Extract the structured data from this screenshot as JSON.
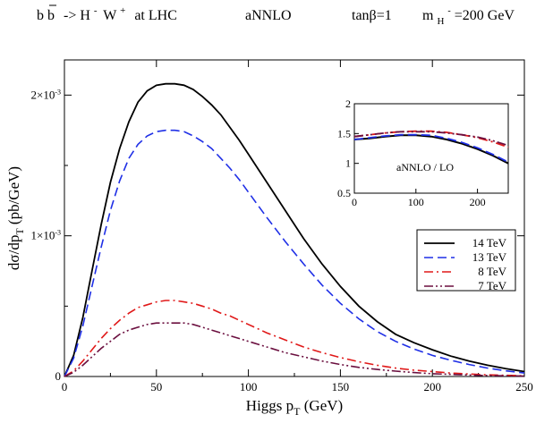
{
  "title": {
    "process_parts": [
      "b b",
      "-> H",
      "W",
      "at LHC"
    ],
    "minus_sup": "-",
    "plus_sup": "+",
    "order": "aNNLO",
    "tanb": "tanβ=1",
    "mass_label": "m",
    "mass_sub": "H",
    "mass_sup": "-",
    "mass_value": "=200 GeV"
  },
  "chart_data": [
    {
      "type": "line",
      "xlabel": "Higgs  p",
      "xlabel_sub": "T",
      "xlabel_unit": " (GeV)",
      "ylabel": "dσ/dp",
      "ylabel_sub": "T",
      "ylabel_unit": " (pb/GeV)",
      "xlim": [
        0,
        250
      ],
      "ylim": [
        0,
        0.00225
      ],
      "xticks": [
        0,
        50,
        100,
        150,
        200,
        250
      ],
      "yticks": [
        {
          "value": 0,
          "mantissa": "0",
          "exp": ""
        },
        {
          "value": 0.001,
          "mantissa": "1×10",
          "exp": "-3"
        },
        {
          "value": 0.002,
          "mantissa": "2×10",
          "exp": "-3"
        }
      ],
      "legend_position": "right",
      "x": [
        0,
        5,
        10,
        15,
        20,
        25,
        30,
        35,
        40,
        45,
        50,
        55,
        60,
        65,
        70,
        75,
        80,
        85,
        90,
        95,
        100,
        110,
        120,
        130,
        140,
        150,
        160,
        170,
        180,
        190,
        200,
        210,
        220,
        230,
        240,
        250
      ],
      "series": [
        {
          "name": "14 TeV",
          "color": "#000000",
          "dash": "solid",
          "values": [
            0.0,
            0.00015,
            0.00042,
            0.00075,
            0.00108,
            0.00138,
            0.00162,
            0.00181,
            0.00195,
            0.00203,
            0.00207,
            0.00208,
            0.00208,
            0.00207,
            0.00204,
            0.00199,
            0.00193,
            0.00186,
            0.00177,
            0.00168,
            0.00158,
            0.00138,
            0.00118,
            0.00098,
            0.0008,
            0.00064,
            0.0005,
            0.00039,
            0.0003,
            0.00024,
            0.00019,
            0.000145,
            0.00011,
            8e-05,
            5.5e-05,
            3.5e-05
          ]
        },
        {
          "name": "13 TeV",
          "color": "#1f2fe6",
          "dash": "long-dash",
          "values": [
            0.0,
            0.00013,
            0.00036,
            0.00064,
            0.00092,
            0.00118,
            0.00139,
            0.00155,
            0.00165,
            0.00171,
            0.00174,
            0.00175,
            0.00175,
            0.00174,
            0.00171,
            0.00167,
            0.00162,
            0.00155,
            0.00148,
            0.0014,
            0.00131,
            0.00113,
            0.00096,
            0.0008,
            0.00065,
            0.00052,
            0.00041,
            0.00032,
            0.00025,
            0.000195,
            0.00015,
            0.000115,
            8.5e-05,
            6e-05,
            4e-05,
            2.5e-05
          ]
        },
        {
          "name": "8 TeV",
          "color": "#e01818",
          "dash": "dash-dot",
          "values": [
            0.0,
            4e-05,
            0.00011,
            0.00019,
            0.00027,
            0.00034,
            0.0004,
            0.00045,
            0.00049,
            0.00051,
            0.00053,
            0.00054,
            0.00054,
            0.00053,
            0.00052,
            0.0005,
            0.00048,
            0.00045,
            0.00043,
            0.0004,
            0.00037,
            0.00031,
            0.00026,
            0.00021,
            0.00017,
            0.000135,
            0.000105,
            8e-05,
            6e-05,
            4.5e-05,
            3.5e-05,
            2.5e-05,
            1.8e-05,
            1.2e-05,
            8e-06,
            5e-06
          ]
        },
        {
          "name": "7 TeV",
          "color": "#6b0f3f",
          "dash": "dash-dot-dot",
          "values": [
            0.0,
            3e-05,
            8e-05,
            0.00014,
            0.0002,
            0.00025,
            0.0003,
            0.00033,
            0.00035,
            0.00037,
            0.00038,
            0.00038,
            0.00038,
            0.00038,
            0.00037,
            0.00035,
            0.00033,
            0.00031,
            0.00029,
            0.00027,
            0.00025,
            0.00021,
            0.00017,
            0.00014,
            0.00011,
            8.5e-05,
            6.5e-05,
            5e-05,
            3.8e-05,
            2.8e-05,
            2e-05,
            1.5e-05,
            1e-05,
            7e-06,
            5e-06,
            3e-06
          ]
        }
      ]
    },
    {
      "type": "line",
      "annotation": "aNNLO / LO",
      "xlim": [
        0,
        250
      ],
      "ylim": [
        0.5,
        2
      ],
      "xticks": [
        0,
        100,
        200
      ],
      "yticks": [
        0.5,
        1,
        1.5,
        2
      ],
      "x": [
        0,
        25,
        50,
        75,
        100,
        125,
        150,
        175,
        200,
        225,
        250
      ],
      "series": [
        {
          "name": "14 TeV",
          "color": "#000000",
          "dash": "solid",
          "values": [
            1.4,
            1.42,
            1.45,
            1.47,
            1.47,
            1.45,
            1.4,
            1.33,
            1.24,
            1.13,
            1.0
          ]
        },
        {
          "name": "13 TeV",
          "color": "#1f2fe6",
          "dash": "long-dash",
          "values": [
            1.4,
            1.43,
            1.46,
            1.48,
            1.48,
            1.47,
            1.42,
            1.35,
            1.26,
            1.15,
            1.02
          ]
        },
        {
          "name": "8 TeV",
          "color": "#e01818",
          "dash": "dash-dot",
          "values": [
            1.45,
            1.48,
            1.51,
            1.53,
            1.54,
            1.54,
            1.52,
            1.48,
            1.43,
            1.36,
            1.27
          ]
        },
        {
          "name": "7 TeV",
          "color": "#6b0f3f",
          "dash": "dash-dot-dot",
          "values": [
            1.45,
            1.48,
            1.51,
            1.53,
            1.53,
            1.53,
            1.51,
            1.48,
            1.44,
            1.38,
            1.3
          ]
        }
      ]
    }
  ]
}
